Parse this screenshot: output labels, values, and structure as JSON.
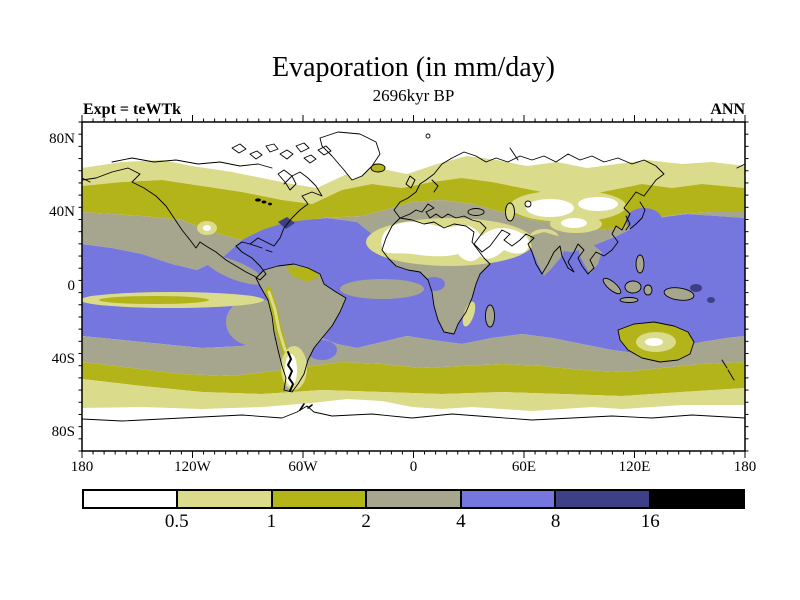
{
  "title": "Evaporation (in mm/day)",
  "subtitle": "2696kyr BP",
  "experiment_label": "Expt = teWTk",
  "season_label": "ANN",
  "map": {
    "lat_ticks": [
      {
        "label": "80N",
        "lat": 80
      },
      {
        "label": "40N",
        "lat": 40
      },
      {
        "label": "0",
        "lat": 0
      },
      {
        "label": "40S",
        "lat": -40
      },
      {
        "label": "80S",
        "lat": -80
      }
    ],
    "lon_ticks": [
      {
        "label": "180",
        "lon": -180
      },
      {
        "label": "120W",
        "lon": -120
      },
      {
        "label": "60W",
        "lon": -60
      },
      {
        "label": "0",
        "lon": 0
      },
      {
        "label": "60E",
        "lon": 60
      },
      {
        "label": "120E",
        "lon": 120
      },
      {
        "label": "180",
        "lon": 180
      }
    ]
  },
  "colorbar": {
    "levels": [
      "0.5",
      "1",
      "2",
      "4",
      "8",
      "16"
    ],
    "colors": [
      "#ffffff",
      "#dbdb8c",
      "#b3b31a",
      "#a6a68f",
      "#7676df",
      "#3f3f87",
      "#000000"
    ]
  },
  "chart_data": {
    "type": "heatmap",
    "title": "Evaporation (in mm/day)",
    "subtitle": "2696kyr BP",
    "experiment": "teWTk",
    "season": "ANN",
    "units": "mm/day",
    "projection": "equirectangular world map, 180W-180E, 90N-90S",
    "contour_levels": [
      0.5,
      1,
      2,
      4,
      8,
      16
    ],
    "level_colors": [
      "#ffffff",
      "#dbdb8c",
      "#b3b31a",
      "#a6a68f",
      "#7676df",
      "#3f3f87",
      "#000000"
    ],
    "x_axis": {
      "tick_labels": [
        "180",
        "120W",
        "60W",
        "0",
        "60E",
        "120E",
        "180"
      ],
      "range_deg": [
        -180,
        180
      ]
    },
    "y_axis": {
      "tick_labels": [
        "80N",
        "40N",
        "0",
        "40S",
        "80S"
      ],
      "range_deg": [
        -90,
        90
      ]
    },
    "legend_position": "bottom horizontal colorbar",
    "zonal_pattern": [
      {
        "lat_band": "90N-68N",
        "value_mm_day": "< 0.5 (white), incl. Greenland and Arctic"
      },
      {
        "lat_band": "68N-57N",
        "value_mm_day": "0.5-1 (pale yellow)"
      },
      {
        "lat_band": "57N-38N",
        "value_mm_day": "1-2 (olive) over continents and N oceans"
      },
      {
        "lat_band": "38N-25N",
        "value_mm_day": "2-4 (gray), covering Europe/Mediterranean"
      },
      {
        "lat_band": "25N-30S",
        "value_mm_day": "4-8 (blue) over tropical oceans"
      },
      {
        "lat_band": "30S-45S",
        "value_mm_day": "2-4 (gray)"
      },
      {
        "lat_band": "45S-57S",
        "value_mm_day": "1-2 (olive)"
      },
      {
        "lat_band": "57S-65S",
        "value_mm_day": "0.5-1 (pale yellow)"
      },
      {
        "lat_band": "65S-90S",
        "value_mm_day": "< 0.5 (white), Antarctica"
      }
    ],
    "notable_features": [
      "Deserts (Sahara, Arabia, Central Asia, Tibet, SW USA, central Australia) < 0.5 mm/day",
      "Gulf Stream spot off US east coast 8-16 mm/day (dark navy)",
      "Equatorial east Pacific cold-tongue minimum (pale/olive streak)",
      "Tropical land (Africa, India, SE Asia, Amazonia) 2-4 mm/day (gray)"
    ]
  }
}
